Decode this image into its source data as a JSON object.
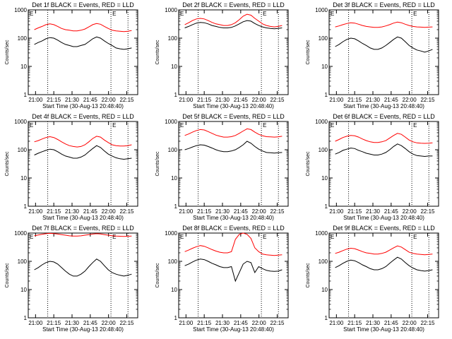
{
  "chart_data": [
    {
      "type": "line",
      "title": "Det 1f BLACK = Events, RED = LLD",
      "xlabel": "Start Time (30-Aug-13 20:48:40)",
      "ylabel": "Counts/sec",
      "yscale": "log",
      "ylim": [
        1,
        1000
      ],
      "xlim": [
        "20:54",
        "22:24"
      ],
      "yticks": [
        "1",
        "10",
        "100",
        "1000"
      ],
      "xticks": [
        "21:00",
        "21:15",
        "21:30",
        "21:45",
        "22:00",
        "22:15"
      ],
      "markers": [
        "21:10",
        "22:02",
        "22:16"
      ],
      "legend_text": "E",
      "series": [
        {
          "color": "#ff0000",
          "values": [
            200,
            230,
            260,
            300,
            320,
            300,
            260,
            220,
            200,
            190,
            180,
            180,
            190,
            210,
            250,
            300,
            330,
            310,
            260,
            220,
            190,
            180,
            175,
            170,
            175,
            185
          ]
        },
        {
          "color": "#000000",
          "values": [
            60,
            70,
            80,
            95,
            105,
            100,
            85,
            70,
            60,
            55,
            50,
            50,
            55,
            60,
            75,
            95,
            110,
            100,
            80,
            65,
            55,
            45,
            42,
            40,
            42,
            45
          ]
        }
      ]
    },
    {
      "type": "line",
      "title": "Det 2f BLACK = Events, RED = LLD",
      "xlabel": "Start Time (30-Aug-13 20:48:40)",
      "ylabel": "Counts/sec",
      "yscale": "log",
      "ylim": [
        1,
        1000
      ],
      "xlim": [
        "20:54",
        "22:24"
      ],
      "yticks": [
        "1",
        "10",
        "100",
        "1000"
      ],
      "xticks": [
        "21:00",
        "21:15",
        "21:30",
        "21:45",
        "22:00",
        "22:15"
      ],
      "markers": [
        "21:10",
        "22:02",
        "22:16"
      ],
      "legend_text": "E",
      "series": [
        {
          "color": "#ff0000",
          "values": [
            300,
            350,
            420,
            480,
            500,
            480,
            420,
            360,
            320,
            300,
            280,
            280,
            300,
            350,
            450,
            600,
            700,
            650,
            500,
            400,
            320,
            280,
            260,
            250,
            260,
            280
          ]
        },
        {
          "color": "#000000",
          "values": [
            230,
            260,
            300,
            340,
            360,
            350,
            320,
            280,
            260,
            240,
            230,
            230,
            240,
            270,
            320,
            380,
            420,
            400,
            330,
            280,
            250,
            230,
            220,
            215,
            220,
            230
          ]
        }
      ]
    },
    {
      "type": "line",
      "title": "Det 3f BLACK = Events, RED = LLD",
      "xlabel": "Start Time (30-Aug-13 20:48:40)",
      "ylabel": "Counts/sec",
      "yscale": "log",
      "ylim": [
        1,
        1000
      ],
      "xlim": [
        "20:54",
        "22:24"
      ],
      "yticks": [
        "1",
        "10",
        "100",
        "1000"
      ],
      "xticks": [
        "21:00",
        "21:15",
        "21:30",
        "21:45",
        "22:00",
        "22:15"
      ],
      "markers": [
        "21:10",
        "22:02",
        "22:16"
      ],
      "legend_text": "E",
      "series": [
        {
          "color": "#ff0000",
          "values": [
            250,
            270,
            300,
            330,
            350,
            340,
            310,
            280,
            260,
            250,
            240,
            240,
            250,
            270,
            300,
            340,
            370,
            350,
            310,
            280,
            260,
            250,
            245,
            240,
            245,
            250
          ]
        },
        {
          "color": "#000000",
          "values": [
            50,
            60,
            75,
            90,
            100,
            95,
            80,
            65,
            55,
            45,
            40,
            40,
            45,
            55,
            70,
            90,
            110,
            100,
            75,
            55,
            45,
            38,
            35,
            32,
            35,
            40
          ]
        }
      ]
    },
    {
      "type": "line",
      "title": "Det 4f BLACK = Events, RED = LLD",
      "xlabel": "Start Time (30-Aug-13 20:48:40)",
      "ylabel": "Counts/sec",
      "yscale": "log",
      "ylim": [
        1,
        1000
      ],
      "xlim": [
        "20:54",
        "22:24"
      ],
      "yticks": [
        "1",
        "10",
        "100",
        "1000"
      ],
      "xticks": [
        "21:00",
        "21:15",
        "21:30",
        "21:45",
        "22:00",
        "22:15"
      ],
      "markers": [
        "21:10",
        "22:02",
        "22:16"
      ],
      "legend_text": "E",
      "series": [
        {
          "color": "#ff0000",
          "values": [
            190,
            210,
            240,
            270,
            290,
            270,
            230,
            190,
            160,
            140,
            130,
            125,
            130,
            150,
            190,
            250,
            300,
            280,
            220,
            180,
            150,
            140,
            135,
            135,
            140,
            150
          ]
        },
        {
          "color": "#000000",
          "values": [
            65,
            75,
            85,
            95,
            105,
            100,
            85,
            70,
            60,
            55,
            50,
            50,
            55,
            65,
            85,
            110,
            140,
            120,
            90,
            70,
            60,
            52,
            48,
            46,
            48,
            50
          ]
        }
      ]
    },
    {
      "type": "line",
      "title": "Det 5f BLACK = Events, RED = LLD",
      "xlabel": "Start Time (30-Aug-13 20:48:40)",
      "ylabel": "Counts/sec",
      "yscale": "log",
      "ylim": [
        1,
        1000
      ],
      "xlim": [
        "20:54",
        "22:24"
      ],
      "yticks": [
        "1",
        "10",
        "100",
        "1000"
      ],
      "xticks": [
        "21:00",
        "21:15",
        "21:30",
        "21:45",
        "22:00",
        "22:15"
      ],
      "markers": [
        "21:10",
        "22:02",
        "22:16"
      ],
      "legend_text": "E",
      "series": [
        {
          "color": "#ff0000",
          "values": [
            320,
            360,
            420,
            480,
            520,
            500,
            440,
            380,
            330,
            300,
            280,
            280,
            290,
            320,
            380,
            460,
            550,
            520,
            420,
            350,
            310,
            290,
            285,
            280,
            285,
            300
          ]
        },
        {
          "color": "#000000",
          "values": [
            100,
            110,
            125,
            140,
            150,
            145,
            130,
            115,
            100,
            90,
            85,
            85,
            90,
            100,
            120,
            150,
            200,
            170,
            130,
            105,
            90,
            80,
            78,
            76,
            78,
            80
          ]
        }
      ]
    },
    {
      "type": "line",
      "title": "Det 6f BLACK = Events, RED = LLD",
      "xlabel": "Start Time (30-Aug-13 20:48:40)",
      "ylabel": "Counts/sec",
      "yscale": "log",
      "ylim": [
        1,
        1000
      ],
      "xlim": [
        "20:54",
        "22:24"
      ],
      "yticks": [
        "1",
        "10",
        "100",
        "1000"
      ],
      "xticks": [
        "21:00",
        "21:15",
        "21:30",
        "21:45",
        "22:00",
        "22:15"
      ],
      "markers": [
        "21:10",
        "22:02",
        "22:16"
      ],
      "legend_text": "E",
      "series": [
        {
          "color": "#ff0000",
          "values": [
            200,
            230,
            270,
            300,
            320,
            310,
            280,
            240,
            210,
            190,
            180,
            180,
            190,
            210,
            260,
            320,
            380,
            350,
            280,
            220,
            190,
            175,
            170,
            168,
            170,
            175
          ]
        },
        {
          "color": "#000000",
          "values": [
            70,
            80,
            95,
            105,
            115,
            110,
            95,
            85,
            75,
            70,
            65,
            65,
            70,
            80,
            100,
            130,
            160,
            140,
            110,
            85,
            70,
            62,
            60,
            58,
            60,
            60
          ]
        }
      ]
    },
    {
      "type": "line",
      "title": "Det 7f BLACK = Events, RED = LLD",
      "xlabel": "Start Time (30-Aug-13 20:48:40)",
      "ylabel": "Counts/sec",
      "yscale": "log",
      "ylim": [
        1,
        1000
      ],
      "xlim": [
        "20:54",
        "22:24"
      ],
      "yticks": [
        "1",
        "10",
        "100",
        "1000"
      ],
      "xticks": [
        "21:00",
        "21:15",
        "21:30",
        "21:45",
        "22:00",
        "22:15"
      ],
      "markers": [
        "21:10",
        "22:02",
        "22:16"
      ],
      "legend_text": "E",
      "series": [
        {
          "color": "#ff0000",
          "values": [
            800,
            850,
            900,
            950,
            980,
            960,
            920,
            880,
            840,
            800,
            780,
            780,
            800,
            840,
            880,
            920,
            950,
            930,
            880,
            840,
            800,
            780,
            770,
            760,
            770,
            780
          ]
        },
        {
          "color": "#000000",
          "values": [
            50,
            60,
            75,
            90,
            100,
            95,
            80,
            60,
            45,
            35,
            30,
            30,
            35,
            45,
            65,
            90,
            120,
            100,
            70,
            50,
            40,
            35,
            32,
            30,
            32,
            35
          ]
        }
      ]
    },
    {
      "type": "line",
      "title": "Det 8f BLACK = Events, RED = LLD",
      "xlabel": "Start Time (30-Aug-13 20:48:40)",
      "ylabel": "Counts/sec",
      "yscale": "log",
      "ylim": [
        1,
        1000
      ],
      "xlim": [
        "20:54",
        "22:24"
      ],
      "yticks": [
        "1",
        "10",
        "100",
        "1000"
      ],
      "xticks": [
        "21:00",
        "21:15",
        "21:30",
        "21:45",
        "22:00",
        "22:15"
      ],
      "markers": [
        "21:10",
        "22:02",
        "22:16"
      ],
      "legend_text": "E",
      "series": [
        {
          "color": "#ff0000",
          "values": [
            220,
            250,
            290,
            330,
            360,
            340,
            300,
            260,
            230,
            210,
            200,
            200,
            220,
            600,
            900,
            1000,
            900,
            650,
            300,
            220,
            180,
            170,
            165,
            160,
            165,
            170
          ]
        },
        {
          "color": "#000000",
          "values": [
            70,
            80,
            95,
            110,
            120,
            115,
            100,
            85,
            75,
            65,
            60,
            60,
            65,
            20,
            40,
            80,
            100,
            90,
            40,
            65,
            55,
            48,
            45,
            44,
            45,
            50
          ]
        }
      ]
    },
    {
      "type": "line",
      "title": "Det 9f BLACK = Events, RED = LLD",
      "xlabel": "Start Time (30-Aug-13 20:48:40)",
      "ylabel": "Counts/sec",
      "yscale": "log",
      "ylim": [
        1,
        1000
      ],
      "xlim": [
        "20:54",
        "22:24"
      ],
      "yticks": [
        "1",
        "10",
        "100",
        "1000"
      ],
      "xticks": [
        "21:00",
        "21:15",
        "21:30",
        "21:45",
        "22:00",
        "22:15"
      ],
      "markers": [
        "21:10",
        "22:02",
        "22:16"
      ],
      "legend_text": "E",
      "series": [
        {
          "color": "#ff0000",
          "values": [
            190,
            210,
            240,
            270,
            290,
            280,
            250,
            220,
            200,
            190,
            180,
            180,
            190,
            210,
            250,
            300,
            350,
            320,
            260,
            210,
            190,
            180,
            175,
            170,
            175,
            180
          ]
        },
        {
          "color": "#000000",
          "values": [
            60,
            70,
            85,
            100,
            110,
            105,
            90,
            75,
            65,
            55,
            50,
            50,
            55,
            65,
            85,
            110,
            140,
            120,
            90,
            70,
            58,
            50,
            47,
            45,
            47,
            50
          ]
        }
      ]
    }
  ]
}
